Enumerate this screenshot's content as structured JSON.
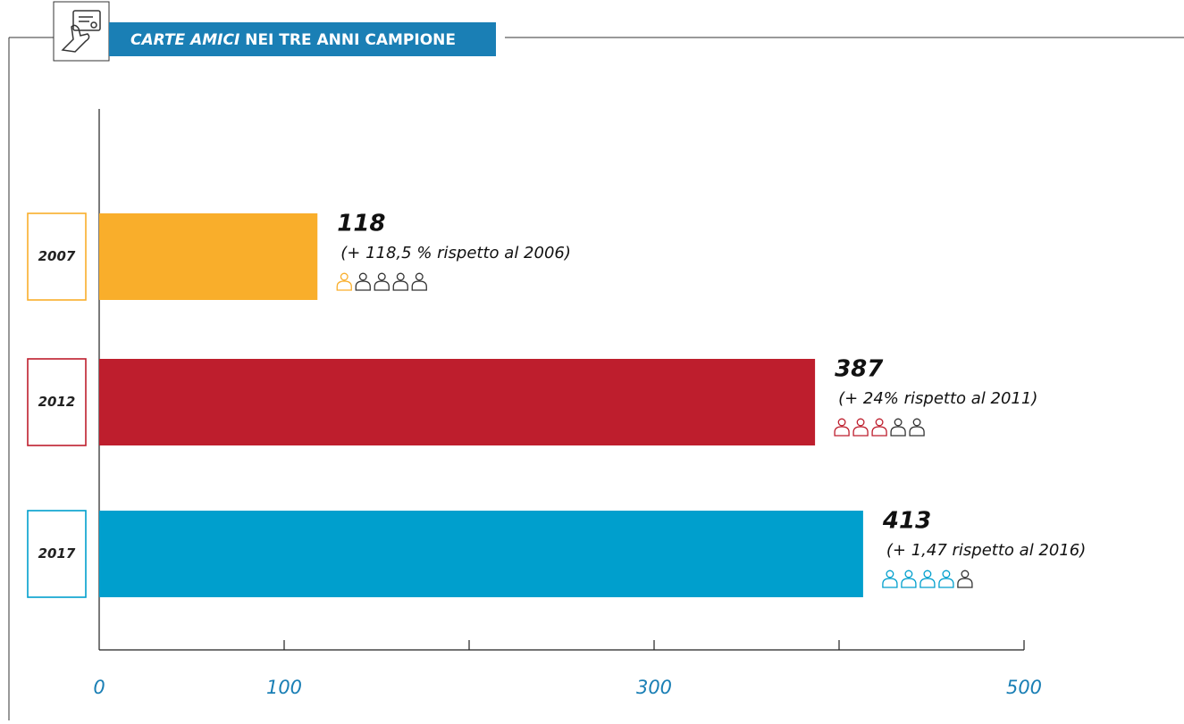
{
  "chart_data": {
    "type": "bar",
    "orientation": "horizontal",
    "title_parts": [
      "CARTE AMICI",
      "NEI TRE ANNI CAMPIONE"
    ],
    "title_color": "#1a7fb5",
    "categories": [
      "2007",
      "2012",
      "2017"
    ],
    "values": [
      118,
      387,
      413
    ],
    "colors": [
      "#f9ae2b",
      "#be1e2d",
      "#009fcd"
    ],
    "annotations": [
      "(+ 118,5 % rispetto al 2006)",
      "(+ 24% rispetto al 2011)",
      "(+ 1,47 rispetto al 2016)"
    ],
    "icons": {
      "total": 5,
      "filled": [
        1,
        3,
        4
      ]
    },
    "xlim": [
      0,
      500
    ],
    "xticks": [
      0,
      100,
      {
        "value": 200,
        "label": null
      },
      300,
      {
        "value": 400,
        "label": null
      },
      500
    ],
    "tick_color": "#1a7fb5"
  }
}
